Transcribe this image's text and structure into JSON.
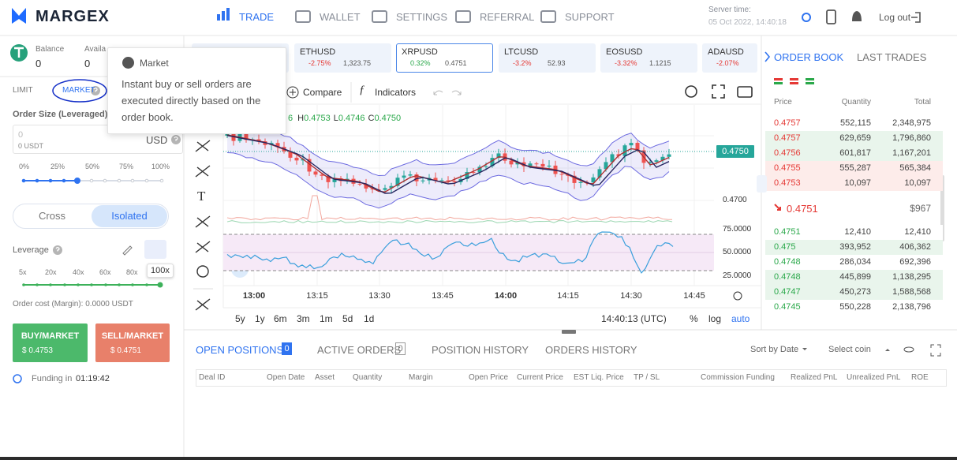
{
  "header": {
    "logo": "MARGEX",
    "nav": [
      "TRADE",
      "WALLET",
      "SETTINGS",
      "REFERRAL",
      "SUPPORT"
    ],
    "server_time_label": "Server time:",
    "server_time": "05 Oct 2022, 14:40:18",
    "logout": "Log out"
  },
  "account": {
    "balance_label": "Balance",
    "balance": "0",
    "available_label": "Availa",
    "available": "0"
  },
  "tooltip": {
    "title": "Market",
    "text": "Instant buy or sell orders are executed directly based on the order book."
  },
  "order_form": {
    "tabs": [
      "LIMIT",
      "MARKET"
    ],
    "order_size_label": "Order Size (Leveraged)",
    "size_placeholder": "0",
    "size_usdt": "0 USDT",
    "currency": "USD",
    "size_marks": [
      "0%",
      "25%",
      "50%",
      "75%",
      "100%"
    ],
    "margin_modes": [
      "Cross",
      "Isolated"
    ],
    "leverage_label": "Leverage",
    "leverage_marks": [
      "5x",
      "20x",
      "40x",
      "60x",
      "80x"
    ],
    "leverage_value": "100x",
    "order_cost": "Order cost (Margin): 0.0000 USDT",
    "buy": {
      "label": "BUY/MARKET",
      "price": "$ 0.4753"
    },
    "sell": {
      "label": "SELL/MARKET",
      "price": "$ 0.4751"
    },
    "funding_label": "Funding in",
    "funding_time": "01:19:42"
  },
  "tickers": [
    {
      "symbol": "ETHUSD",
      "change": "-2.75%",
      "price": "1,323.75",
      "trend": "down"
    },
    {
      "symbol": "XRPUSD",
      "change": "0.32%",
      "price": "0.4751",
      "trend": "up"
    },
    {
      "symbol": "LTCUSD",
      "change": "-3.2%",
      "price": "52.93",
      "trend": "down"
    },
    {
      "symbol": "EOSUSD",
      "change": "-3.32%",
      "price": "1.1215",
      "trend": "down"
    },
    {
      "symbol": "ADAUSD",
      "change": "-2.07%",
      "trend": "down"
    }
  ],
  "chart": {
    "toolbar": [
      "Compare",
      "Indicators"
    ],
    "ohlc": [
      "6",
      "H",
      "0.4753",
      "L",
      "0.4746",
      "C",
      "0.4750"
    ],
    "last_price": "0.4750",
    "price_labels": [
      "0.4700"
    ],
    "oscillator_labels": [
      "75.0000",
      "50.0000",
      "25.0000"
    ],
    "time_labels": [
      "13:00",
      "13:15",
      "13:30",
      "13:45",
      "14:00",
      "14:15",
      "14:30",
      "14:45"
    ],
    "ranges": [
      "5y",
      "1y",
      "6m",
      "3m",
      "1m",
      "5d",
      "1d"
    ],
    "clock": "14:40:13 (UTC)",
    "scale_options": [
      "%",
      "log",
      "auto"
    ]
  },
  "order_book": {
    "tabs": [
      "ORDER BOOK",
      "LAST TRADES"
    ],
    "columns": [
      "Price",
      "Quantity",
      "Total"
    ],
    "asks": [
      [
        "0.4757",
        "552,115",
        "2,348,975"
      ],
      [
        "0.4757",
        "629,659",
        "1,796,860"
      ],
      [
        "0.4756",
        "601,817",
        "1,167,201"
      ],
      [
        "0.4755",
        "555,287",
        "565,384"
      ],
      [
        "0.4753",
        "10,097",
        "10,097"
      ]
    ],
    "last_price": "0.4751",
    "last_value": "$967",
    "bids": [
      [
        "0.4751",
        "12,410",
        "12,410"
      ],
      [
        "0.475",
        "393,952",
        "406,362"
      ],
      [
        "0.4748",
        "286,034",
        "692,396"
      ],
      [
        "0.4748",
        "445,899",
        "1,138,295"
      ],
      [
        "0.4747",
        "450,273",
        "1,588,568"
      ],
      [
        "0.4745",
        "550,228",
        "2,138,796"
      ]
    ]
  },
  "positions": {
    "tabs": [
      {
        "label": "OPEN POSITIONS",
        "count": "0"
      },
      {
        "label": "ACTIVE ORDERS",
        "count": "0"
      },
      {
        "label": "POSITION HISTORY"
      },
      {
        "label": "ORDERS HISTORY"
      }
    ],
    "sort": "Sort by Date",
    "select": "Select coin",
    "columns": [
      "Deal ID",
      "Open Date",
      "Asset",
      "Quantity",
      "Margin",
      "Open Price",
      "Current Price",
      "EST Liq. Price",
      "TP / SL",
      "Commission Funding",
      "Realized PnL",
      "Unrealized PnL",
      "ROE"
    ]
  }
}
